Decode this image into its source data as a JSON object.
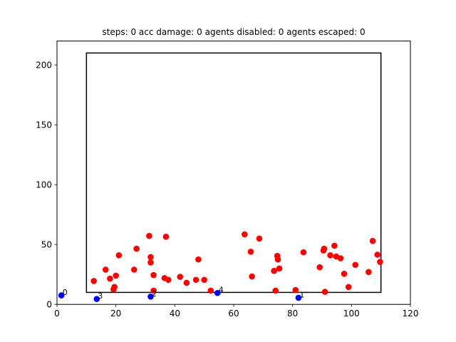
{
  "chart_data": {
    "type": "scatter",
    "title": "steps: 0   acc damage: 0   agents disabled: 0   agents escaped: 0",
    "xlabel": "",
    "ylabel": "",
    "xlim": [
      0,
      120
    ],
    "ylim": [
      0,
      220
    ],
    "xticks": [
      0,
      20,
      40,
      60,
      80,
      100,
      120
    ],
    "yticks": [
      0,
      50,
      100,
      150,
      200
    ],
    "grid": false,
    "boundary_rect": {
      "x0": 10,
      "y0": 10,
      "x1": 110,
      "y1": 210,
      "color": "#000000"
    },
    "series": [
      {
        "color": "#ff0000",
        "points": [
          [
            12.5,
            19.5
          ],
          [
            16.5,
            29
          ],
          [
            18,
            21.5
          ],
          [
            19.2,
            12.5
          ],
          [
            19.5,
            14.5
          ],
          [
            20,
            24
          ],
          [
            21,
            41
          ],
          [
            26.2,
            29
          ],
          [
            27,
            46.5
          ],
          [
            31.3,
            57.2
          ],
          [
            31.8,
            39.5
          ],
          [
            31.8,
            35
          ],
          [
            32.8,
            24.5
          ],
          [
            32.8,
            11.5
          ],
          [
            36.5,
            22
          ],
          [
            37,
            56.5
          ],
          [
            37.8,
            20.5
          ],
          [
            41.8,
            23
          ],
          [
            44,
            18
          ],
          [
            47.2,
            20.5
          ],
          [
            48,
            37.5
          ],
          [
            50,
            20.5
          ],
          [
            52.2,
            11.5
          ],
          [
            63.7,
            58.5
          ],
          [
            65.8,
            44
          ],
          [
            66.2,
            23.3
          ],
          [
            68.7,
            55
          ],
          [
            73.7,
            28
          ],
          [
            74.2,
            11.5
          ],
          [
            74.8,
            40.5
          ],
          [
            75,
            37.5
          ],
          [
            75.5,
            30
          ],
          [
            81,
            12
          ],
          [
            83.7,
            43.5
          ],
          [
            89.2,
            31
          ],
          [
            90.5,
            45
          ],
          [
            90.7,
            46.5
          ],
          [
            91,
            10.5
          ],
          [
            92.8,
            41
          ],
          [
            94.2,
            49
          ],
          [
            94.8,
            40
          ],
          [
            96.3,
            38.5
          ],
          [
            97.5,
            25.5
          ],
          [
            99,
            14.5
          ],
          [
            101.3,
            33
          ],
          [
            105.8,
            27
          ],
          [
            107.2,
            53
          ],
          [
            108.8,
            41.5
          ],
          [
            109.7,
            35.5
          ]
        ]
      },
      {
        "color": "#0000ff",
        "points": [
          [
            1.5,
            7.5
          ],
          [
            13.5,
            4.5
          ],
          [
            31.8,
            6.5
          ],
          [
            54.5,
            9.5
          ],
          [
            82,
            5.5
          ]
        ],
        "labels": [
          "0",
          "3",
          "2",
          "4",
          "1"
        ]
      }
    ]
  }
}
